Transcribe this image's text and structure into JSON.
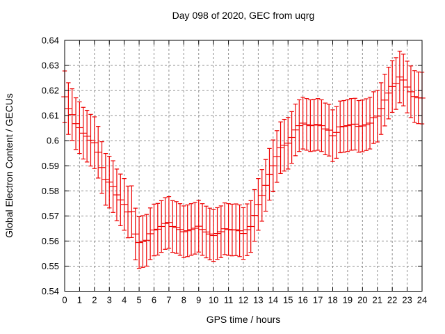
{
  "figure": {
    "background": "#ffffff",
    "text_color": "#000000",
    "grid_color": "#909090",
    "axis_color": "#000000"
  },
  "chart_data": {
    "type": "scatter",
    "subtype": "errorbars",
    "title": "Day 098 of 2020, GEC from uqrg",
    "xlabel": "GPS time / hours",
    "ylabel": "Global Electron Content / GECUs",
    "xlim": [
      0,
      24
    ],
    "ylim": [
      0.54,
      0.64
    ],
    "grid": true,
    "legend": "none",
    "xticks": [
      0,
      1,
      2,
      3,
      4,
      5,
      6,
      7,
      8,
      9,
      10,
      11,
      12,
      13,
      14,
      15,
      16,
      17,
      18,
      19,
      20,
      21,
      22,
      23,
      24
    ],
    "xtick_labels": [
      "0",
      "1",
      "2",
      "3",
      "4",
      "5",
      "6",
      "7",
      "8",
      "9",
      "10",
      "11",
      "12",
      "13",
      "14",
      "15",
      "16",
      "17",
      "18",
      "19",
      "20",
      "21",
      "22",
      "23",
      "24"
    ],
    "yticks": [
      0.54,
      0.55,
      0.56,
      0.57,
      0.58,
      0.59,
      0.6,
      0.61,
      0.62,
      0.63,
      0.64
    ],
    "ytick_labels": [
      "0.54",
      "0.55",
      "0.56",
      "0.57",
      "0.58",
      "0.59",
      "0.6",
      "0.61",
      "0.62",
      "0.63",
      "0.64"
    ],
    "series": [
      {
        "name": "GEC",
        "color": "#ee0000",
        "marker": "errorbar-with-mean-tick",
        "yerr_halfwidth": 0.0103,
        "x": [
          0,
          0.25,
          0.5,
          0.75,
          1,
          1.25,
          1.5,
          1.75,
          2,
          2.25,
          2.5,
          2.75,
          3,
          3.25,
          3.5,
          3.75,
          4,
          4.25,
          4.5,
          4.75,
          5,
          5.25,
          5.5,
          5.75,
          6,
          6.25,
          6.5,
          6.75,
          7,
          7.25,
          7.5,
          7.75,
          8,
          8.25,
          8.5,
          8.75,
          9,
          9.25,
          9.5,
          9.75,
          10,
          10.25,
          10.5,
          10.75,
          11,
          11.25,
          11.5,
          11.75,
          12,
          12.25,
          12.5,
          12.75,
          13,
          13.25,
          13.5,
          13.75,
          14,
          14.25,
          14.5,
          14.75,
          15,
          15.25,
          15.5,
          15.75,
          16,
          16.25,
          16.5,
          16.75,
          17,
          17.25,
          17.5,
          17.75,
          18,
          18.25,
          18.5,
          18.75,
          19,
          19.25,
          19.5,
          19.75,
          20,
          20.25,
          20.5,
          20.75,
          21,
          21.25,
          21.5,
          21.75,
          22,
          22.25,
          22.5,
          22.75,
          23,
          23.25,
          23.5,
          23.75,
          24
        ],
        "y": [
          0.6175,
          0.6128,
          0.6104,
          0.6068,
          0.6052,
          0.603,
          0.6018,
          0.6002,
          0.5992,
          0.5954,
          0.5893,
          0.5846,
          0.5835,
          0.5817,
          0.5784,
          0.5764,
          0.5746,
          0.5716,
          0.5717,
          0.5628,
          0.5594,
          0.5598,
          0.5603,
          0.5629,
          0.5644,
          0.5647,
          0.5658,
          0.567,
          0.5674,
          0.5658,
          0.5654,
          0.5646,
          0.5637,
          0.5641,
          0.5646,
          0.5651,
          0.5659,
          0.5646,
          0.5636,
          0.5628,
          0.5622,
          0.563,
          0.5637,
          0.5649,
          0.5646,
          0.5644,
          0.5645,
          0.5641,
          0.563,
          0.5645,
          0.5658,
          0.5702,
          0.5746,
          0.5782,
          0.5822,
          0.5866,
          0.59,
          0.5937,
          0.5972,
          0.5982,
          0.599,
          0.6013,
          0.6043,
          0.606,
          0.607,
          0.6065,
          0.606,
          0.6062,
          0.6065,
          0.606,
          0.6047,
          0.6042,
          0.602,
          0.6033,
          0.6055,
          0.6057,
          0.606,
          0.6065,
          0.6066,
          0.6057,
          0.6059,
          0.6064,
          0.607,
          0.6092,
          0.6098,
          0.6128,
          0.6162,
          0.619,
          0.6216,
          0.6228,
          0.6254,
          0.6242,
          0.6214,
          0.6195,
          0.6176,
          0.6171,
          0.617
        ]
      }
    ]
  }
}
